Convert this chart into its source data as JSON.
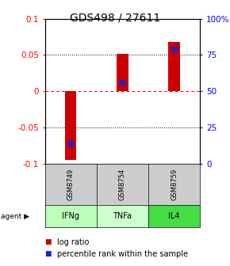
{
  "title": "GDS498 / 27611",
  "samples": [
    "GSM8749",
    "GSM8754",
    "GSM8759"
  ],
  "agents": [
    "IFNg",
    "TNFa",
    "IL4"
  ],
  "log_ratios": [
    -0.095,
    0.051,
    0.068
  ],
  "percentile_ranks": [
    14,
    56,
    79
  ],
  "ylim_left": [
    -0.1,
    0.1
  ],
  "ylim_right": [
    0,
    100
  ],
  "yticks_left": [
    -0.1,
    -0.05,
    0,
    0.05,
    0.1
  ],
  "yticks_right": [
    0,
    25,
    50,
    75,
    100
  ],
  "yticklabels_right": [
    "0",
    "25",
    "50",
    "75",
    "100%"
  ],
  "bar_color": "#cc0000",
  "dot_color": "#2222cc",
  "sample_box_color": "#cccccc",
  "agent_colors": [
    "#bbffbb",
    "#ccffcc",
    "#44dd44"
  ],
  "background_color": "#ffffff",
  "title_fontsize": 10,
  "tick_fontsize": 7.5,
  "legend_fontsize": 7
}
